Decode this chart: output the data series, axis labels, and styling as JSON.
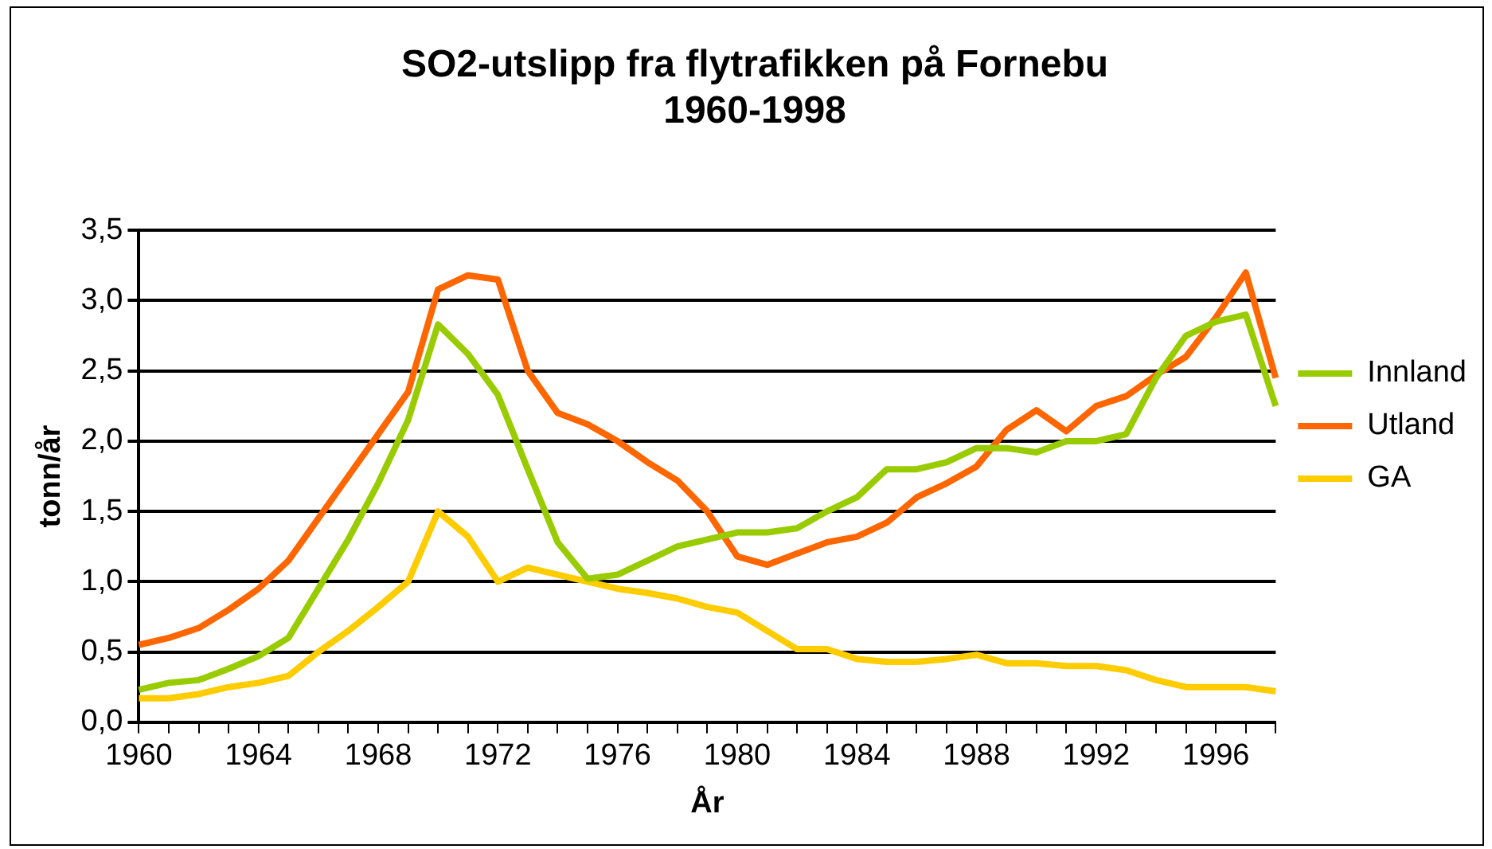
{
  "chart_data": {
    "type": "line",
    "title": "SO2-utslipp fra flytrafikken på Fornebu\n1960-1998",
    "xlabel": "År",
    "ylabel": "tonn/år",
    "categories": [
      "1960",
      null,
      null,
      null,
      "1964",
      null,
      null,
      null,
      "1968",
      null,
      null,
      null,
      "1972",
      null,
      null,
      null,
      "1976",
      null,
      null,
      null,
      "1980",
      null,
      null,
      null,
      "1984",
      null,
      null,
      null,
      "1988",
      null,
      null,
      null,
      "1992",
      null,
      null,
      null,
      "1996",
      null,
      null
    ],
    "series": [
      {
        "name": "Innland",
        "color": "#99cc00",
        "values": [
          0.23,
          0.28,
          0.3,
          0.38,
          0.47,
          0.6,
          0.95,
          1.3,
          1.7,
          2.15,
          2.83,
          2.62,
          2.33,
          1.8,
          1.28,
          1.02,
          1.05,
          1.15,
          1.25,
          1.3,
          1.35,
          1.35,
          1.38,
          1.5,
          1.6,
          1.8,
          1.8,
          1.85,
          1.95,
          1.95,
          1.92,
          2.0,
          2.0,
          2.05,
          2.45,
          2.75,
          2.85,
          2.9,
          2.25
        ]
      },
      {
        "name": "Utland",
        "color": "#ff6600",
        "values": [
          0.55,
          0.6,
          0.67,
          0.8,
          0.95,
          1.15,
          1.45,
          1.75,
          2.05,
          2.35,
          3.08,
          3.18,
          3.15,
          2.5,
          2.2,
          2.12,
          2.0,
          1.85,
          1.72,
          1.5,
          1.18,
          1.12,
          1.2,
          1.28,
          1.32,
          1.42,
          1.6,
          1.7,
          1.82,
          2.08,
          2.22,
          2.07,
          2.25,
          2.32,
          2.47,
          2.6,
          2.88,
          3.2,
          2.45
        ]
      },
      {
        "name": "GA",
        "color": "#ffcc00",
        "values": [
          0.17,
          0.17,
          0.2,
          0.25,
          0.28,
          0.33,
          0.5,
          0.65,
          0.82,
          1.0,
          1.5,
          1.32,
          1.0,
          1.1,
          1.05,
          1.0,
          0.95,
          0.92,
          0.88,
          0.82,
          0.78,
          0.65,
          0.52,
          0.52,
          0.45,
          0.43,
          0.43,
          0.45,
          0.48,
          0.42,
          0.42,
          0.4,
          0.4,
          0.37,
          0.3,
          0.25,
          0.25,
          0.25,
          0.22
        ]
      }
    ],
    "ylim": [
      0,
      3.5
    ],
    "yticks": [
      {
        "value": 0,
        "label": "0,0"
      },
      {
        "value": 0.5,
        "label": "0,5"
      },
      {
        "value": 1,
        "label": "1,0"
      },
      {
        "value": 1.5,
        "label": "1,5"
      },
      {
        "value": 2,
        "label": "2,0"
      },
      {
        "value": 2.5,
        "label": "2,5"
      },
      {
        "value": 3,
        "label": "3,0"
      },
      {
        "value": 3.5,
        "label": "3,5"
      }
    ],
    "grid": "y",
    "legend": "right",
    "marker": "none",
    "line_style": "solid"
  }
}
